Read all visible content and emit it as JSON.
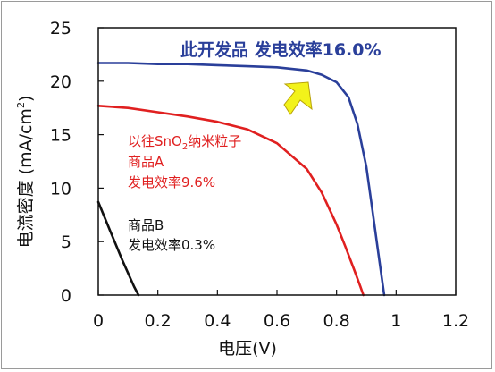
{
  "chart_data": {
    "type": "line",
    "title": "此开发品 发电效率16.0%",
    "xlabel": "电压(V)",
    "ylabel_parts": {
      "main": "电流密度 (mA/cm",
      "sup": "2",
      "end": ")"
    },
    "xlim": [
      0,
      1.2
    ],
    "ylim": [
      0,
      25
    ],
    "x_ticks": [
      0,
      0.2,
      0.4,
      0.6,
      0.8,
      1,
      1.2
    ],
    "x_tick_labels": [
      "0",
      "0.2",
      "0.4",
      "0.6",
      "0.8",
      "1",
      "1.2"
    ],
    "y_ticks": [
      0,
      5,
      10,
      15,
      20,
      25
    ],
    "y_tick_labels": [
      "0",
      "5",
      "10",
      "15",
      "20",
      "25"
    ],
    "grid": false,
    "legend": "none",
    "series": [
      {
        "color": "#2a3f9a",
        "x": [
          0,
          0.1,
          0.2,
          0.3,
          0.4,
          0.5,
          0.6,
          0.7,
          0.75,
          0.8,
          0.84,
          0.87,
          0.9,
          0.92,
          0.94,
          0.955,
          0.96
        ],
        "y": [
          21.7,
          21.7,
          21.6,
          21.6,
          21.5,
          21.4,
          21.3,
          21.0,
          20.6,
          19.9,
          18.5,
          16.0,
          12.0,
          8.0,
          4.0,
          1.0,
          0
        ]
      },
      {
        "color": "#e02020",
        "x": [
          0,
          0.1,
          0.2,
          0.3,
          0.4,
          0.5,
          0.6,
          0.7,
          0.75,
          0.8,
          0.83,
          0.86,
          0.88,
          0.89
        ],
        "y": [
          17.7,
          17.5,
          17.1,
          16.7,
          16.2,
          15.5,
          14.2,
          11.8,
          9.6,
          6.6,
          4.5,
          2.3,
          0.8,
          0
        ]
      },
      {
        "color": "#111111",
        "x": [
          0,
          0.04,
          0.08,
          0.12,
          0.135
        ],
        "y": [
          8.7,
          6.0,
          3.3,
          0.8,
          0
        ]
      }
    ],
    "annotations": {
      "red": {
        "color": "#e02020",
        "line1_pre": "以往SnO",
        "line1_sub": "2",
        "line1_post": "纳米粒子",
        "line2": "商品A",
        "line3": "发电效率9.6%"
      },
      "black": {
        "color": "#111111",
        "line1": "商品B",
        "line2": "发电效率0.3%"
      },
      "arrow_color": "#f2f21a",
      "title_color": "#2a3f9a"
    }
  }
}
